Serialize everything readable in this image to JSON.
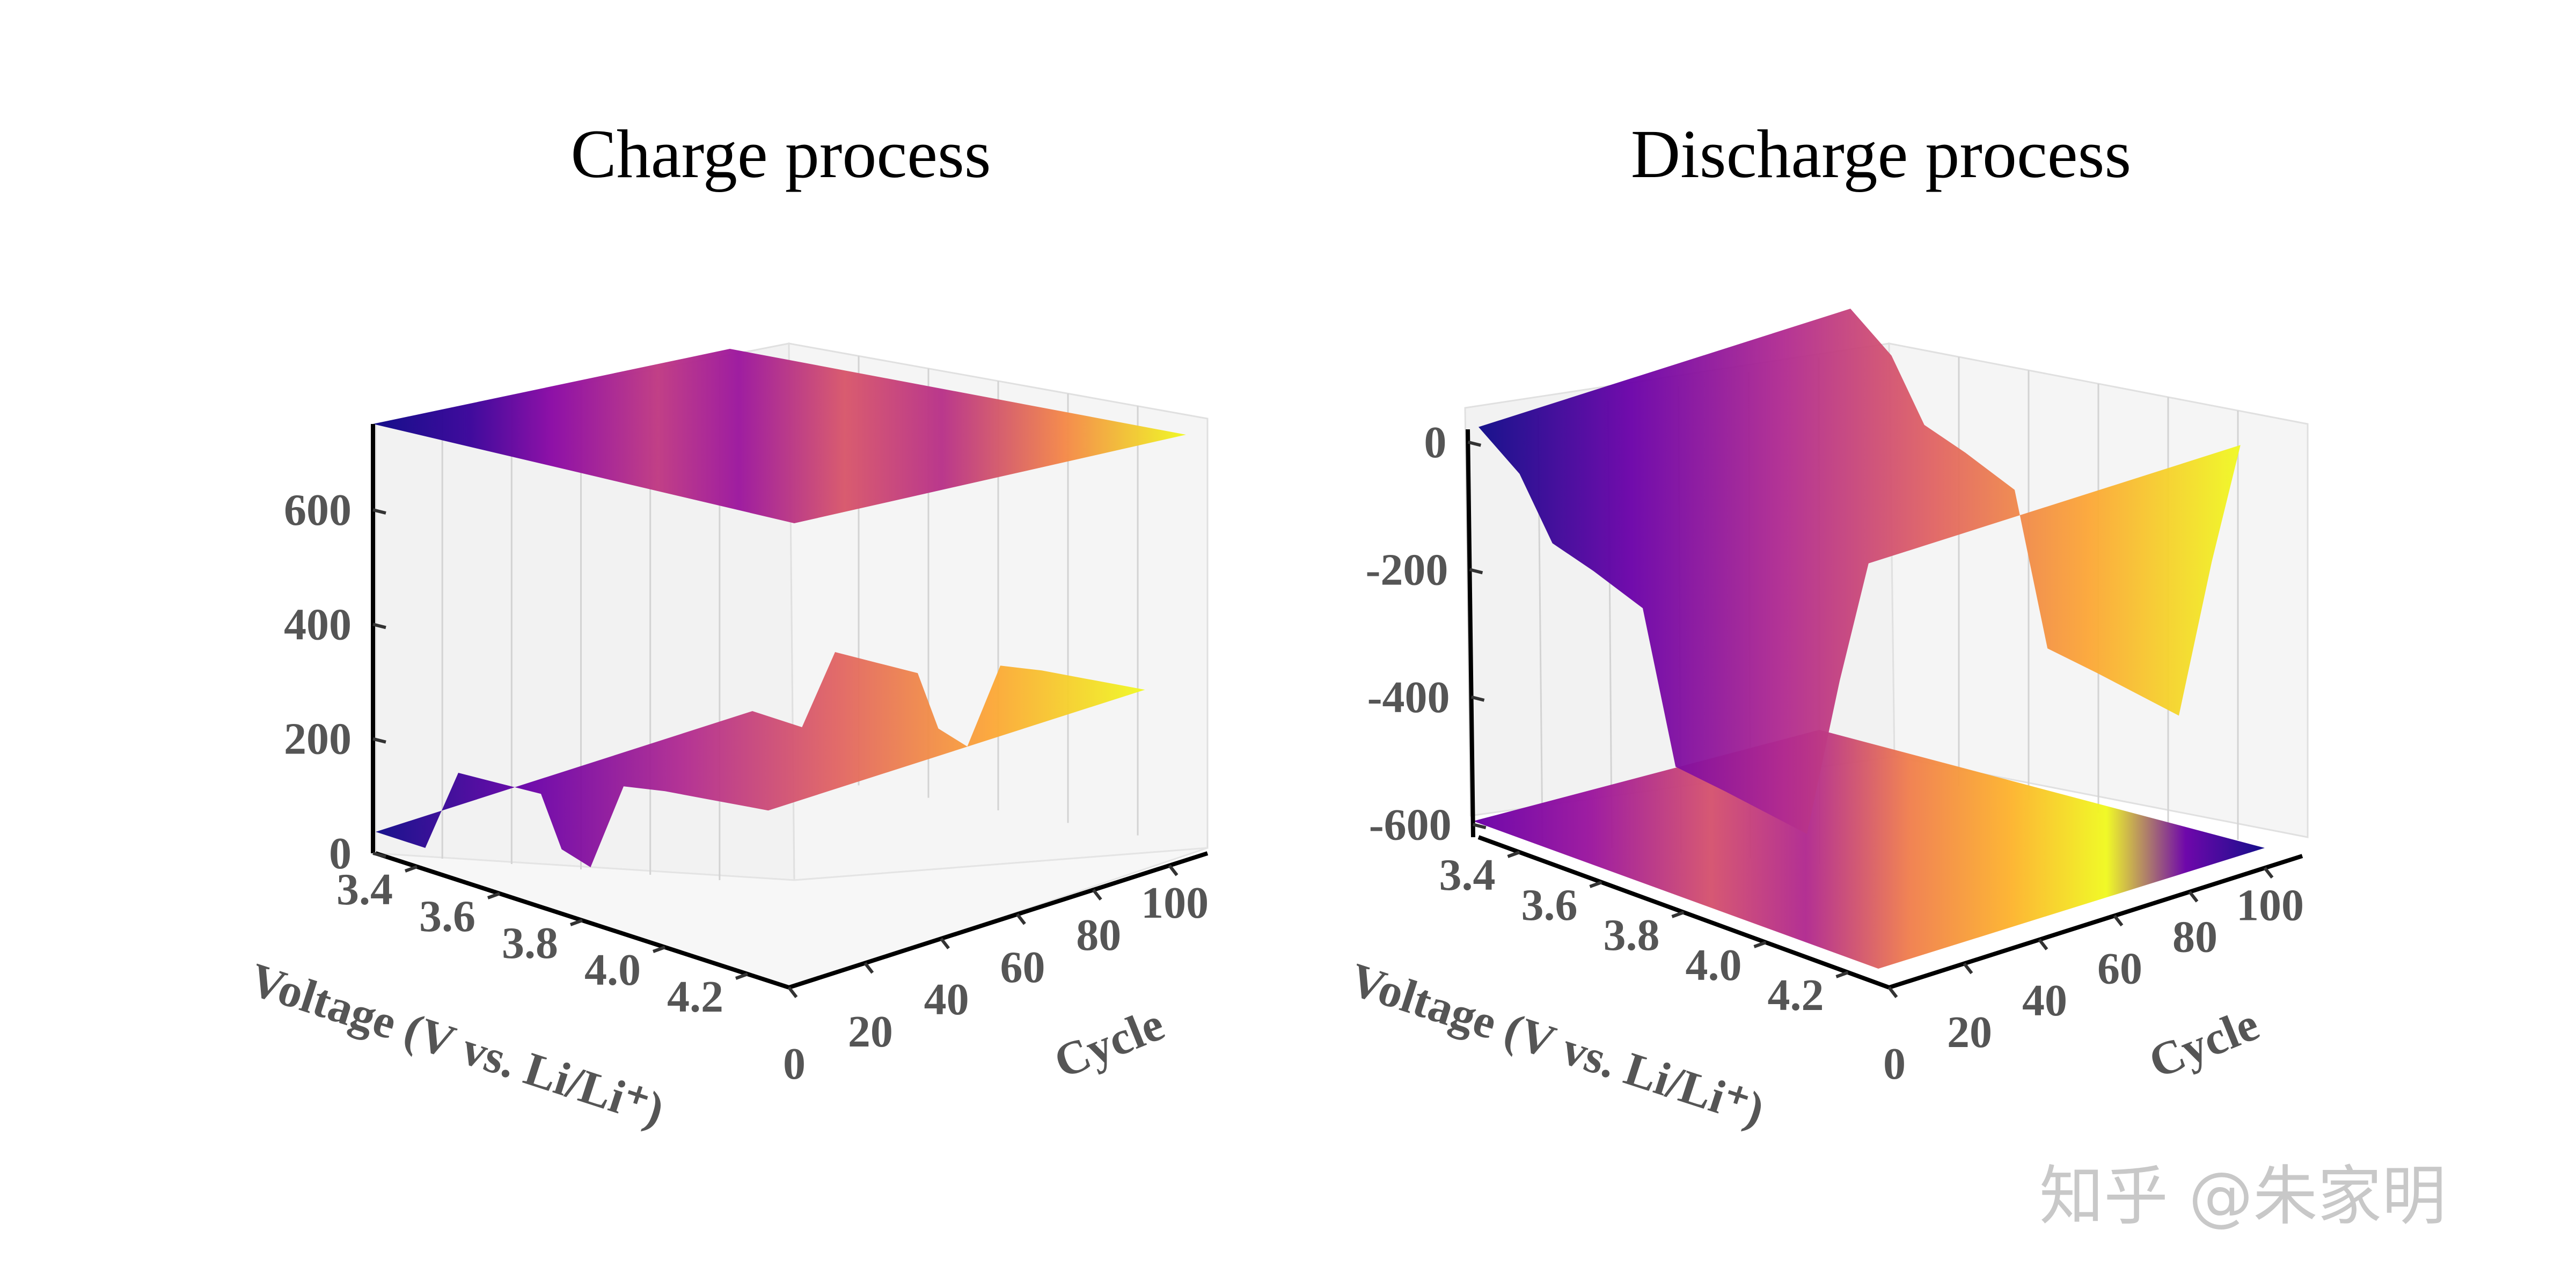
{
  "watermark": "知乎 @朱家明",
  "colormap": [
    "#0d0887",
    "#6a00a8",
    "#b12a90",
    "#e16462",
    "#fca636",
    "#f0f921"
  ],
  "chart_data": [
    {
      "type": "surface3d",
      "title": "Charge process",
      "xlabel": "Voltage (V vs. Li/Li⁺)",
      "ylabel": "Cycle",
      "zlabel": "",
      "xlim": [
        3.3,
        4.3
      ],
      "ylim": [
        0,
        110
      ],
      "zlim": [
        0,
        750
      ],
      "xticks": [
        "3.4",
        "3.6",
        "3.8",
        "4.0",
        "4.2"
      ],
      "yticks": [
        "0",
        "20",
        "40",
        "60",
        "80",
        "100"
      ],
      "zticks": [
        "0",
        "200",
        "400",
        "600"
      ],
      "projection_plane": "top",
      "profile": [
        {
          "voltage": 3.3,
          "value": 0
        },
        {
          "voltage": 3.42,
          "value": 0
        },
        {
          "voltage": 3.5,
          "value": 150
        },
        {
          "voltage": 3.6,
          "value": 155
        },
        {
          "voltage": 3.7,
          "value": 160
        },
        {
          "voltage": 3.75,
          "value": 75
        },
        {
          "voltage": 3.82,
          "value": 60
        },
        {
          "voltage": 3.9,
          "value": 220
        },
        {
          "voltage": 4.0,
          "value": 235
        },
        {
          "voltage": 4.1,
          "value": 245
        },
        {
          "voltage": 4.2,
          "value": 255
        },
        {
          "voltage": 4.25,
          "value": 260
        }
      ]
    },
    {
      "type": "surface3d",
      "title": "Discharge process",
      "xlabel": "Voltage (V vs. Li/Li⁺)",
      "ylabel": "Cycle",
      "zlabel": "",
      "xlim": [
        3.3,
        4.3
      ],
      "ylim": [
        0,
        110
      ],
      "zlim": [
        -620,
        20
      ],
      "xticks": [
        "3.4",
        "3.6",
        "3.8",
        "4.0",
        "4.2"
      ],
      "yticks": [
        "0",
        "20",
        "40",
        "60",
        "80",
        "100"
      ],
      "zticks": [
        "0",
        "-200",
        "-400",
        "-600"
      ],
      "projection_plane": "bottom",
      "profile": [
        {
          "voltage": 3.3,
          "value": -10
        },
        {
          "voltage": 3.4,
          "value": -60
        },
        {
          "voltage": 3.48,
          "value": -150
        },
        {
          "voltage": 3.58,
          "value": -170
        },
        {
          "voltage": 3.7,
          "value": -200
        },
        {
          "voltage": 3.78,
          "value": -430
        },
        {
          "voltage": 3.9,
          "value": -440
        },
        {
          "voltage": 4.0,
          "value": -450
        },
        {
          "voltage": 4.1,
          "value": -460
        },
        {
          "voltage": 4.18,
          "value": -200
        },
        {
          "voltage": 4.25,
          "value": 0
        }
      ]
    }
  ]
}
